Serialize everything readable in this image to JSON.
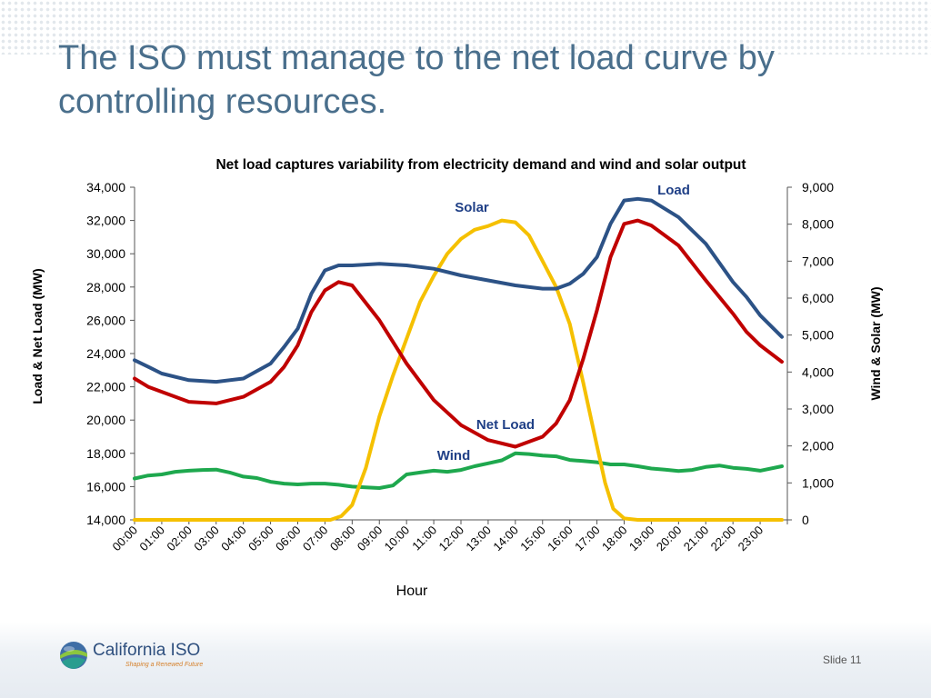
{
  "slide": {
    "title": "The ISO must manage to the net load curve by controlling resources.",
    "logo_name": "California ISO",
    "logo_tagline": "Shaping a Renewed Future",
    "slide_number": "Slide 11"
  },
  "colors": {
    "title": "#4a6f8c",
    "load": "#2c5286",
    "net_load": "#c00000",
    "solar": "#f5c000",
    "wind": "#1ea84e",
    "label": "#1f3f86"
  },
  "chart_data": {
    "type": "line",
    "title": "Net load captures variability from electricity demand and wind and solar output",
    "xlabel": "Hour",
    "ylabel": "Load & Net Load (MW)",
    "y2label": "Wind & Solar (MW)",
    "ylim": [
      14000,
      34000
    ],
    "y2lim": [
      0,
      9000
    ],
    "y_ticks": [
      "14,000",
      "16,000",
      "18,000",
      "20,000",
      "22,000",
      "24,000",
      "26,000",
      "28,000",
      "30,000",
      "32,000",
      "34,000"
    ],
    "y2_ticks": [
      "0",
      "1,000",
      "2,000",
      "3,000",
      "4,000",
      "5,000",
      "6,000",
      "7,000",
      "8,000",
      "9,000"
    ],
    "x_categories": [
      "00:00",
      "01:00",
      "02:00",
      "03:00",
      "04:00",
      "05:00",
      "06:00",
      "07:00",
      "08:00",
      "09:00",
      "10:00",
      "11:00",
      "12:00",
      "13:00",
      "14:00",
      "15:00",
      "16:00",
      "17:00",
      "18:00",
      "19:00",
      "20:00",
      "21:00",
      "22:00",
      "23:00"
    ],
    "grid": false,
    "legend": "inline labels",
    "series": [
      {
        "name": "Load",
        "axis": "left",
        "color_key": "load",
        "x": [
          0,
          0.5,
          1,
          2,
          3,
          4,
          5,
          5.5,
          6,
          6.5,
          7,
          7.5,
          8,
          9,
          10,
          11,
          12,
          13,
          14,
          15,
          15.5,
          16,
          16.5,
          17,
          17.5,
          18,
          18.5,
          19,
          20,
          21,
          22,
          22.5,
          23,
          23.8
        ],
        "values": [
          23600,
          23200,
          22800,
          22400,
          22300,
          22500,
          23400,
          24400,
          25500,
          27600,
          29000,
          29300,
          29300,
          29400,
          29300,
          29100,
          28700,
          28400,
          28100,
          27900,
          27900,
          28200,
          28800,
          29800,
          31800,
          33200,
          33300,
          33200,
          32200,
          30600,
          28300,
          27400,
          26300,
          25000
        ]
      },
      {
        "name": "Net Load",
        "axis": "left",
        "color_key": "net_load",
        "x": [
          0,
          0.5,
          1,
          2,
          3,
          4,
          5,
          5.5,
          6,
          6.5,
          7,
          7.5,
          8,
          9,
          10,
          11,
          12,
          13,
          14,
          15,
          15.5,
          16,
          16.5,
          17,
          17.5,
          18,
          18.5,
          19,
          20,
          21,
          22,
          22.5,
          23,
          23.8
        ],
        "values": [
          22500,
          22000,
          21700,
          21100,
          21000,
          21400,
          22300,
          23200,
          24500,
          26500,
          27800,
          28300,
          28100,
          26000,
          23400,
          21200,
          19700,
          18800,
          18400,
          19000,
          19800,
          21200,
          23700,
          26600,
          29800,
          31800,
          32000,
          31700,
          30500,
          28400,
          26400,
          25300,
          24500,
          23500
        ]
      },
      {
        "name": "Solar",
        "axis": "right",
        "color_key": "solar",
        "x": [
          0,
          7.2,
          7.6,
          8,
          8.5,
          9,
          9.5,
          10,
          10.5,
          11,
          11.5,
          12,
          12.5,
          13,
          13.5,
          14,
          14.5,
          15,
          15.5,
          16,
          16.5,
          17,
          17.3,
          17.6,
          18,
          18.5,
          23.8
        ],
        "values": [
          0,
          0,
          100,
          400,
          1400,
          2800,
          3900,
          4900,
          5900,
          6600,
          7200,
          7600,
          7850,
          7950,
          8100,
          8050,
          7700,
          7000,
          6300,
          5300,
          3700,
          2000,
          1000,
          300,
          40,
          0,
          0
        ]
      },
      {
        "name": "Wind",
        "axis": "right",
        "color_key": "wind",
        "x": [
          0,
          0.5,
          1,
          1.5,
          2,
          2.5,
          3,
          3.5,
          4,
          4.5,
          5,
          5.5,
          6,
          6.5,
          7,
          7.5,
          8,
          8.5,
          9,
          9.5,
          10,
          10.5,
          11,
          11.5,
          12,
          12.5,
          13,
          13.5,
          14,
          14.5,
          15,
          15.5,
          16,
          16.5,
          17,
          17.5,
          18,
          18.5,
          19,
          19.5,
          20,
          20.5,
          21,
          21.5,
          22,
          22.5,
          23,
          23.8
        ],
        "values": [
          1120,
          1200,
          1230,
          1300,
          1330,
          1350,
          1360,
          1280,
          1170,
          1130,
          1030,
          980,
          960,
          980,
          980,
          950,
          900,
          880,
          860,
          930,
          1230,
          1280,
          1330,
          1300,
          1350,
          1450,
          1530,
          1610,
          1800,
          1780,
          1740,
          1720,
          1620,
          1590,
          1560,
          1500,
          1500,
          1450,
          1390,
          1360,
          1320,
          1350,
          1430,
          1470,
          1410,
          1380,
          1330,
          1450
        ]
      }
    ],
    "annotations": [
      {
        "text": "Load",
        "series": "Load"
      },
      {
        "text": "Solar",
        "series": "Solar"
      },
      {
        "text": "Net Load",
        "series": "Net Load"
      },
      {
        "text": "Wind",
        "series": "Wind"
      }
    ]
  }
}
